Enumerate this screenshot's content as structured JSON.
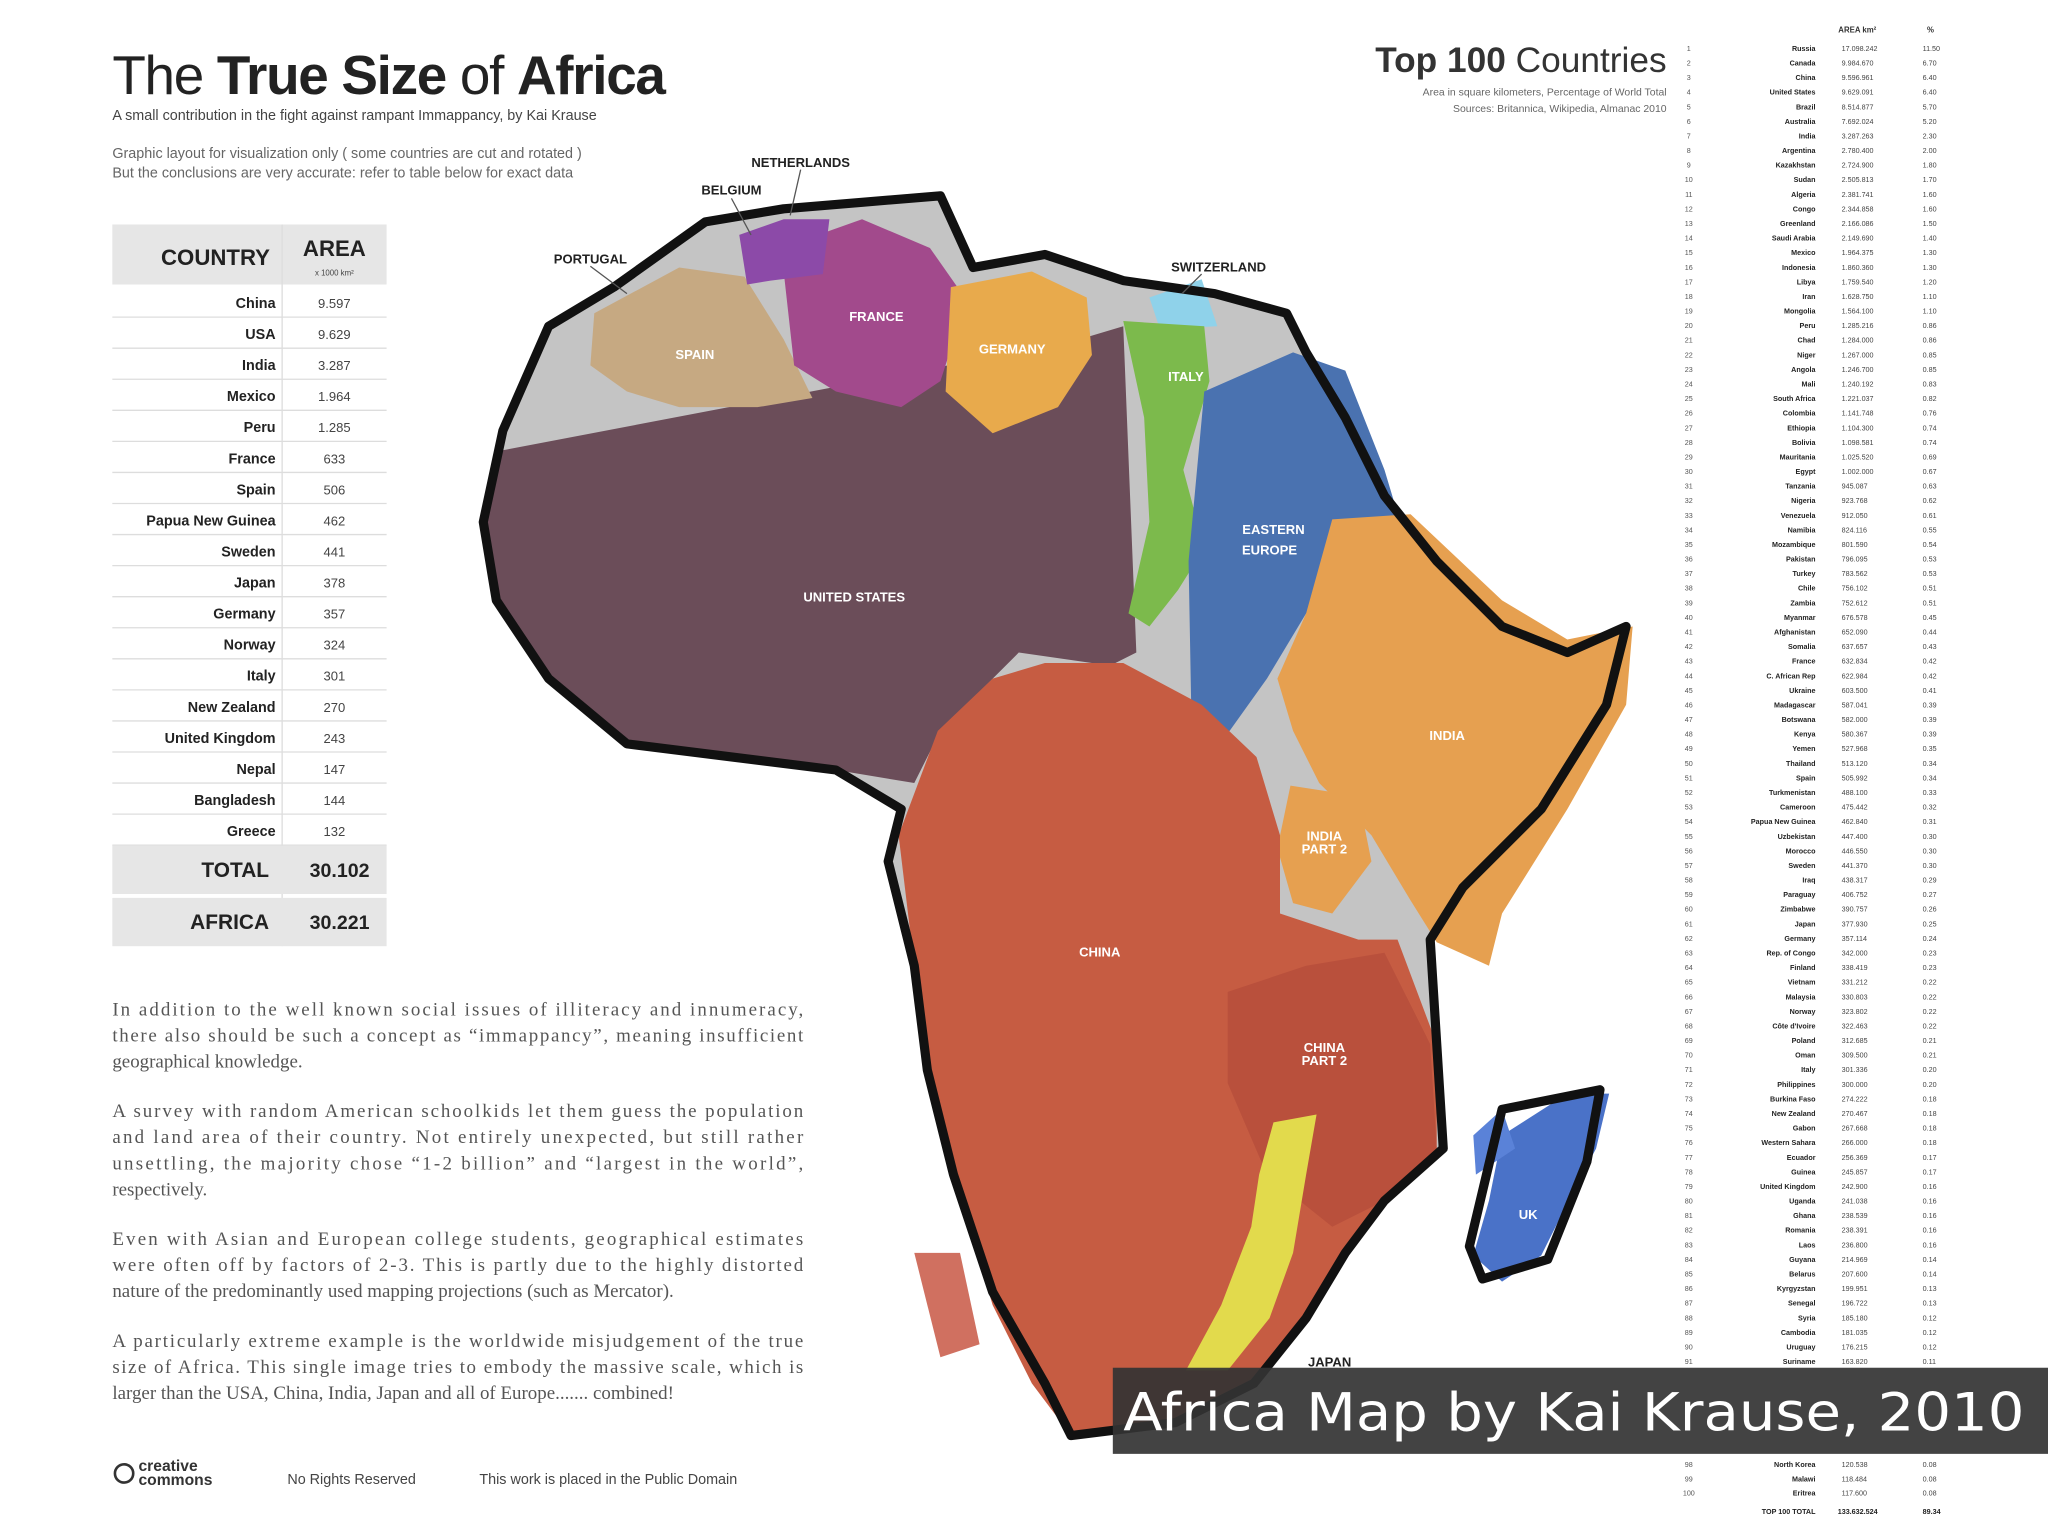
{
  "header": {
    "title": [
      "The",
      "True Size",
      "of",
      "Africa"
    ],
    "subtitle": "A small contribution in the fight against rampant Immappancy, by Kai Krause",
    "notes": [
      "Graphic layout for visualization only ( some countries are cut and rotated )",
      "But the conclusions are very accurate: refer to table below for exact data"
    ]
  },
  "table": {
    "headers": [
      "COUNTRY",
      "AREA",
      "x 1000 km²"
    ],
    "rows": [
      [
        "China",
        "9.597"
      ],
      [
        "USA",
        "9.629"
      ],
      [
        "India",
        "3.287"
      ],
      [
        "Mexico",
        "1.964"
      ],
      [
        "Peru",
        "1.285"
      ],
      [
        "France",
        "633"
      ],
      [
        "Spain",
        "506"
      ],
      [
        "Papua New Guinea",
        "462"
      ],
      [
        "Sweden",
        "441"
      ],
      [
        "Japan",
        "378"
      ],
      [
        "Germany",
        "357"
      ],
      [
        "Norway",
        "324"
      ],
      [
        "Italy",
        "301"
      ],
      [
        "New Zealand",
        "270"
      ],
      [
        "United Kingdom",
        "243"
      ],
      [
        "Nepal",
        "147"
      ],
      [
        "Bangladesh",
        "144"
      ],
      [
        "Greece",
        "132"
      ]
    ],
    "totals": [
      [
        "TOTAL",
        "30.102"
      ],
      [
        "AFRICA",
        "30.221"
      ]
    ]
  },
  "paragraphs": [
    [
      "In addition to the well known social issues of illiteracy and innumeracy,",
      "there also should be such a concept as “immappancy”, meaning insufficient",
      "geographical knowledge."
    ],
    [
      "A survey with random American schoolkids let them guess the population",
      "and land area of their country. Not entirely unexpected, but still rather",
      "unsettling, the majority chose “1-2 billion” and “largest in the world”,",
      "respectively."
    ],
    [
      "Even with Asian and European college students, geographical estimates",
      "were often off by factors of 2-3. This is partly due to the highly distorted",
      "nature of the predominantly used mapping projections (such as Mercator)."
    ],
    [
      "A particularly extreme example is the worldwide misjudgement of the true",
      "size of Africa. This single image tries to embody the massive scale, which is",
      "larger than the USA, China, India, Japan and all of Europe....... combined!"
    ]
  ],
  "footer": {
    "logo": [
      "creative",
      "commons"
    ],
    "rights": "No Rights Reserved",
    "domain": "This work is placed in the Public Domain"
  },
  "map_labels": {
    "netherlands": "NETHERLANDS",
    "belgium": "BELGIUM",
    "portugal": "PORTUGAL",
    "spain": "SPAIN",
    "france": "FRANCE",
    "germany": "GERMANY",
    "switzerland": "SWITZERLAND",
    "italy": "ITALY",
    "eastern_europe": [
      "EASTERN",
      "EUROPE"
    ],
    "united_states": "UNITED STATES",
    "india": "INDIA",
    "india_part2": [
      "INDIA",
      "PART 2"
    ],
    "china": "CHINA",
    "china_part2": [
      "CHINA",
      "PART 2"
    ],
    "uk": "UK",
    "japan": "JAPAN"
  },
  "top100": {
    "title": [
      "Top 100",
      "Countries"
    ],
    "subtitle": [
      "Area in square kilometers, Percentage of World Total",
      "Sources:  Britannica, Wikipedia, Almanac 2010"
    ],
    "headers": [
      "AREA km²",
      "%"
    ],
    "rows": [
      [
        1,
        "Russia",
        "17.098.242",
        "11.50"
      ],
      [
        2,
        "Canada",
        "9.984.670",
        "6.70"
      ],
      [
        3,
        "China",
        "9.596.961",
        "6.40"
      ],
      [
        4,
        "United States",
        "9.629.091",
        "6.40"
      ],
      [
        5,
        "Brazil",
        "8.514.877",
        "5.70"
      ],
      [
        6,
        "Australia",
        "7.692.024",
        "5.20"
      ],
      [
        7,
        "India",
        "3.287.263",
        "2.30"
      ],
      [
        8,
        "Argentina",
        "2.780.400",
        "2.00"
      ],
      [
        9,
        "Kazakhstan",
        "2.724.900",
        "1.80"
      ],
      [
        10,
        "Sudan",
        "2.505.813",
        "1.70"
      ],
      [
        11,
        "Algeria",
        "2.381.741",
        "1.60"
      ],
      [
        12,
        "Congo",
        "2.344.858",
        "1.60"
      ],
      [
        13,
        "Greenland",
        "2.166.086",
        "1.50"
      ],
      [
        14,
        "Saudi Arabia",
        "2.149.690",
        "1.40"
      ],
      [
        15,
        "Mexico",
        "1.964.375",
        "1.30"
      ],
      [
        16,
        "Indonesia",
        "1.860.360",
        "1.30"
      ],
      [
        17,
        "Libya",
        "1.759.540",
        "1.20"
      ],
      [
        18,
        "Iran",
        "1.628.750",
        "1.10"
      ],
      [
        19,
        "Mongolia",
        "1.564.100",
        "1.10"
      ],
      [
        20,
        "Peru",
        "1.285.216",
        "0.86"
      ],
      [
        21,
        "Chad",
        "1.284.000",
        "0.86"
      ],
      [
        22,
        "Niger",
        "1.267.000",
        "0.85"
      ],
      [
        23,
        "Angola",
        "1.246.700",
        "0.85"
      ],
      [
        24,
        "Mali",
        "1.240.192",
        "0.83"
      ],
      [
        25,
        "South Africa",
        "1.221.037",
        "0.82"
      ],
      [
        26,
        "Colombia",
        "1.141.748",
        "0.76"
      ],
      [
        27,
        "Ethiopia",
        "1.104.300",
        "0.74"
      ],
      [
        28,
        "Bolivia",
        "1.098.581",
        "0.74"
      ],
      [
        29,
        "Mauritania",
        "1.025.520",
        "0.69"
      ],
      [
        30,
        "Egypt",
        "1.002.000",
        "0.67"
      ],
      [
        31,
        "Tanzania",
        "945.087",
        "0.63"
      ],
      [
        32,
        "Nigeria",
        "923.768",
        "0.62"
      ],
      [
        33,
        "Venezuela",
        "912.050",
        "0.61"
      ],
      [
        34,
        "Namibia",
        "824.116",
        "0.55"
      ],
      [
        35,
        "Mozambique",
        "801.590",
        "0.54"
      ],
      [
        36,
        "Pakistan",
        "796.095",
        "0.53"
      ],
      [
        37,
        "Turkey",
        "783.562",
        "0.53"
      ],
      [
        38,
        "Chile",
        "756.102",
        "0.51"
      ],
      [
        39,
        "Zambia",
        "752.612",
        "0.51"
      ],
      [
        40,
        "Myanmar",
        "676.578",
        "0.45"
      ],
      [
        41,
        "Afghanistan",
        "652.090",
        "0.44"
      ],
      [
        42,
        "Somalia",
        "637.657",
        "0.43"
      ],
      [
        43,
        "France",
        "632.834",
        "0.42"
      ],
      [
        44,
        "C. African Rep",
        "622.984",
        "0.42"
      ],
      [
        45,
        "Ukraine",
        "603.500",
        "0.41"
      ],
      [
        46,
        "Madagascar",
        "587.041",
        "0.39"
      ],
      [
        47,
        "Botswana",
        "582.000",
        "0.39"
      ],
      [
        48,
        "Kenya",
        "580.367",
        "0.39"
      ],
      [
        49,
        "Yemen",
        "527.968",
        "0.35"
      ],
      [
        50,
        "Thailand",
        "513.120",
        "0.34"
      ],
      [
        51,
        "Spain",
        "505.992",
        "0.34"
      ],
      [
        52,
        "Turkmenistan",
        "488.100",
        "0.33"
      ],
      [
        53,
        "Cameroon",
        "475.442",
        "0.32"
      ],
      [
        54,
        "Papua New Guinea",
        "462.840",
        "0.31"
      ],
      [
        55,
        "Uzbekistan",
        "447.400",
        "0.30"
      ],
      [
        56,
        "Morocco",
        "446.550",
        "0.30"
      ],
      [
        57,
        "Sweden",
        "441.370",
        "0.30"
      ],
      [
        58,
        "Iraq",
        "438.317",
        "0.29"
      ],
      [
        59,
        "Paraguay",
        "406.752",
        "0.27"
      ],
      [
        60,
        "Zimbabwe",
        "390.757",
        "0.26"
      ],
      [
        61,
        "Japan",
        "377.930",
        "0.25"
      ],
      [
        62,
        "Germany",
        "357.114",
        "0.24"
      ],
      [
        63,
        "Rep. of Congo",
        "342.000",
        "0.23"
      ],
      [
        64,
        "Finland",
        "338.419",
        "0.23"
      ],
      [
        65,
        "Vietnam",
        "331.212",
        "0.22"
      ],
      [
        66,
        "Malaysia",
        "330.803",
        "0.22"
      ],
      [
        67,
        "Norway",
        "323.802",
        "0.22"
      ],
      [
        68,
        "Côte d'Ivoire",
        "322.463",
        "0.22"
      ],
      [
        69,
        "Poland",
        "312.685",
        "0.21"
      ],
      [
        70,
        "Oman",
        "309.500",
        "0.21"
      ],
      [
        71,
        "Italy",
        "301.336",
        "0.20"
      ],
      [
        72,
        "Philippines",
        "300.000",
        "0.20"
      ],
      [
        73,
        "Burkina Faso",
        "274.222",
        "0.18"
      ],
      [
        74,
        "New Zealand",
        "270.467",
        "0.18"
      ],
      [
        75,
        "Gabon",
        "267.668",
        "0.18"
      ],
      [
        76,
        "Western Sahara",
        "266.000",
        "0.18"
      ],
      [
        77,
        "Ecuador",
        "256.369",
        "0.17"
      ],
      [
        78,
        "Guinea",
        "245.857",
        "0.17"
      ],
      [
        79,
        "United Kingdom",
        "242.900",
        "0.16"
      ],
      [
        80,
        "Uganda",
        "241.038",
        "0.16"
      ],
      [
        81,
        "Ghana",
        "238.539",
        "0.16"
      ],
      [
        82,
        "Romania",
        "238.391",
        "0.16"
      ],
      [
        83,
        "Laos",
        "236.800",
        "0.16"
      ],
      [
        84,
        "Guyana",
        "214.969",
        "0.14"
      ],
      [
        85,
        "Belarus",
        "207.600",
        "0.14"
      ],
      [
        86,
        "Kyrgyzstan",
        "199.951",
        "0.13"
      ],
      [
        87,
        "Senegal",
        "196.722",
        "0.13"
      ],
      [
        88,
        "Syria",
        "185.180",
        "0.12"
      ],
      [
        89,
        "Cambodia",
        "181.035",
        "0.12"
      ],
      [
        90,
        "Uruguay",
        "176.215",
        "0.12"
      ],
      [
        91,
        "Suriname",
        "163.820",
        "0.11"
      ],
      [
        98,
        "North Korea",
        "120.538",
        "0.08"
      ],
      [
        99,
        "Malawi",
        "118.484",
        "0.08"
      ],
      [
        100,
        "Eritrea",
        "117.600",
        "0.08"
      ]
    ],
    "total": [
      "TOP 100 TOTAL",
      "133.632.524",
      "89.34"
    ]
  },
  "caption": "Africa Map by Kai Krause, 2010"
}
